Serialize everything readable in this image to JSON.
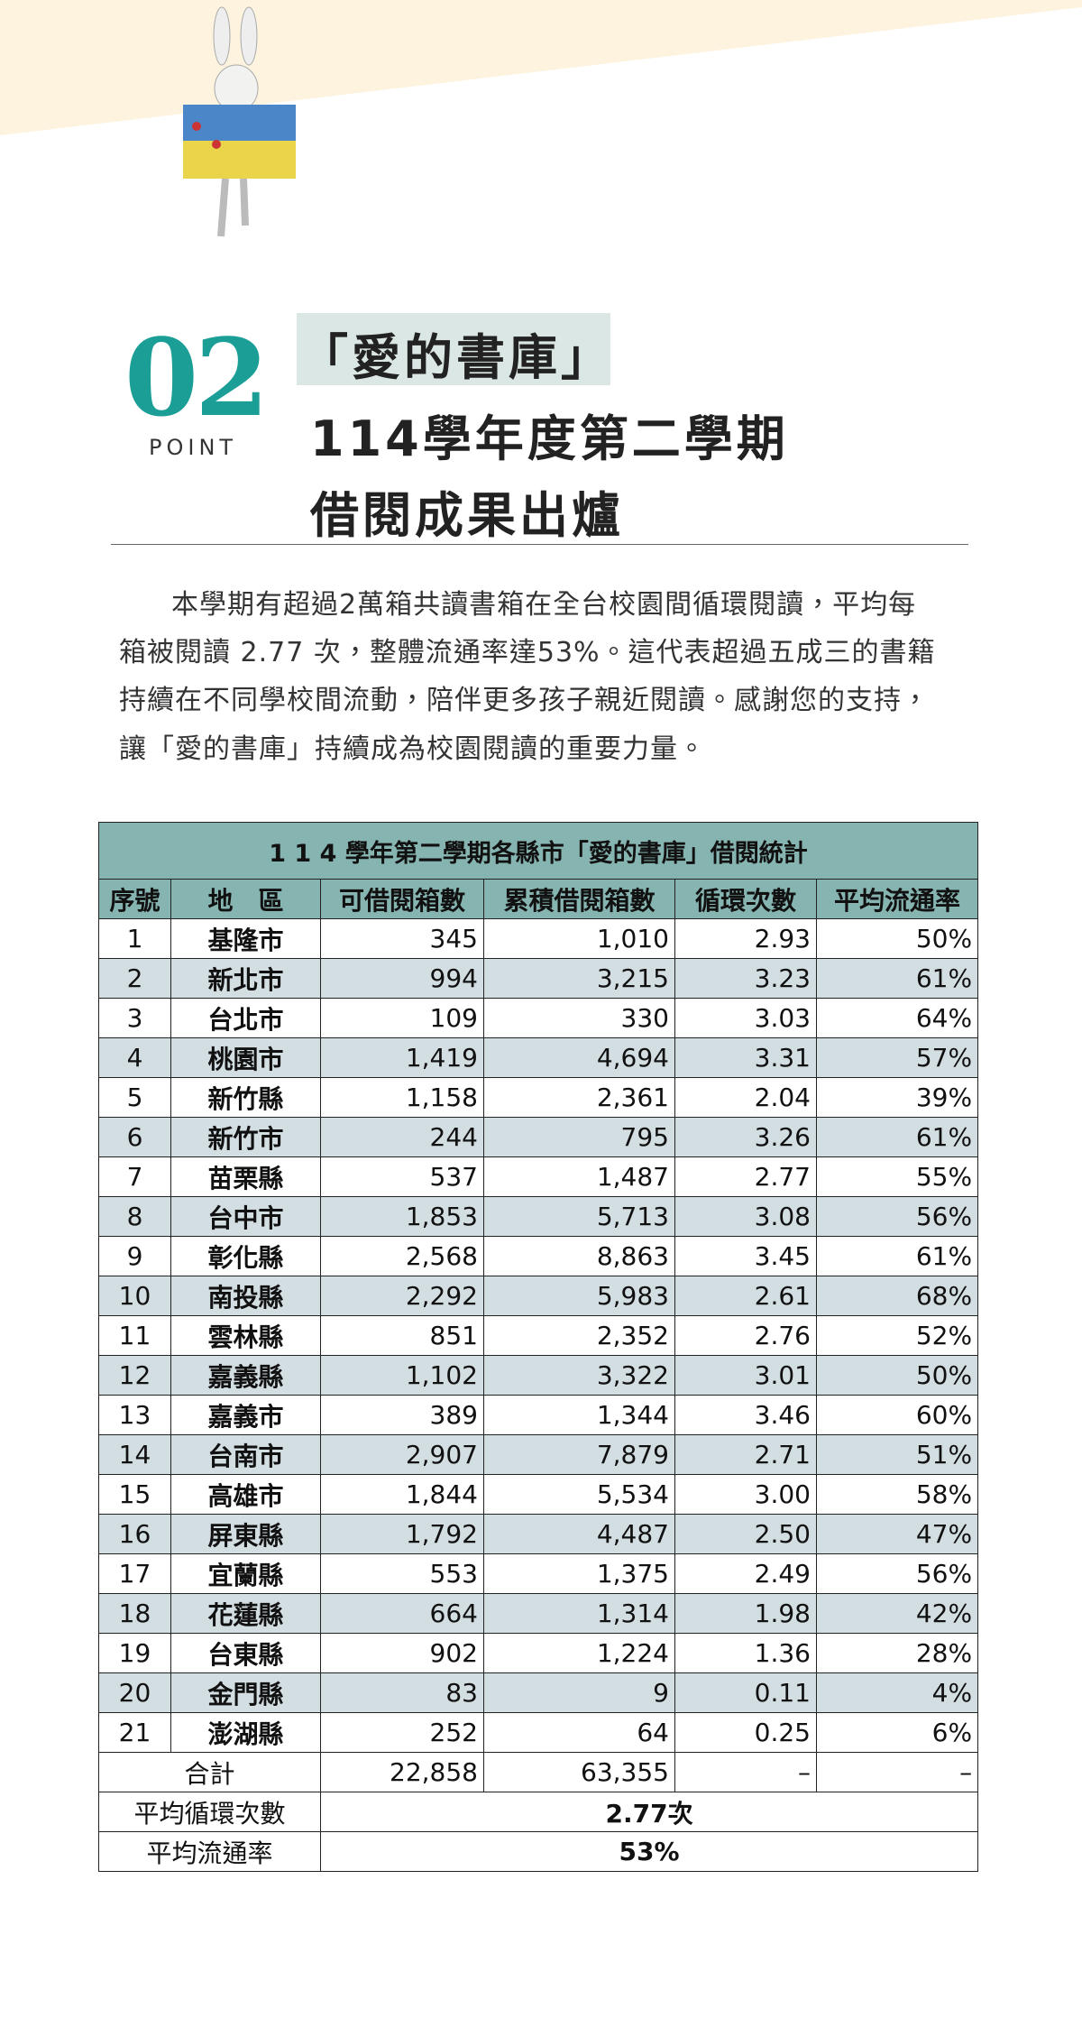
{
  "header": {
    "number": "02",
    "point": "POINT",
    "highlight": "「愛的書庫」",
    "title_lines": [
      "114學年度第二學期",
      "借閱成果出爐"
    ]
  },
  "paragraph": {
    "lines": [
      "本學期有超過2萬箱共讀書箱在全台校園間循環閱讀，平均每",
      "箱被閱讀 2.77 次，整體流通率達53%。這代表超過五成三的書籍",
      "持續在不同學校間流動，陪伴更多孩子親近閱讀。感謝您的支持，",
      "讓「愛的書庫」持續成為校園閱讀的重要力量。"
    ]
  },
  "table": {
    "title": "1 1 4 學年第二學期各縣市「愛的書庫」借閱統計",
    "columns": [
      "序號",
      "地　區",
      "可借閱箱數",
      "累積借閱箱數",
      "循環次數",
      "平均流通率"
    ],
    "rows": [
      [
        "1",
        "基隆市",
        "345",
        "1,010",
        "2.93",
        "50%"
      ],
      [
        "2",
        "新北市",
        "994",
        "3,215",
        "3.23",
        "61%"
      ],
      [
        "3",
        "台北市",
        "109",
        "330",
        "3.03",
        "64%"
      ],
      [
        "4",
        "桃園市",
        "1,419",
        "4,694",
        "3.31",
        "57%"
      ],
      [
        "5",
        "新竹縣",
        "1,158",
        "2,361",
        "2.04",
        "39%"
      ],
      [
        "6",
        "新竹市",
        "244",
        "795",
        "3.26",
        "61%"
      ],
      [
        "7",
        "苗栗縣",
        "537",
        "1,487",
        "2.77",
        "55%"
      ],
      [
        "8",
        "台中市",
        "1,853",
        "5,713",
        "3.08",
        "56%"
      ],
      [
        "9",
        "彰化縣",
        "2,568",
        "8,863",
        "3.45",
        "61%"
      ],
      [
        "10",
        "南投縣",
        "2,292",
        "5,983",
        "2.61",
        "68%"
      ],
      [
        "11",
        "雲林縣",
        "851",
        "2,352",
        "2.76",
        "52%"
      ],
      [
        "12",
        "嘉義縣",
        "1,102",
        "3,322",
        "3.01",
        "50%"
      ],
      [
        "13",
        "嘉義市",
        "389",
        "1,344",
        "3.46",
        "60%"
      ],
      [
        "14",
        "台南市",
        "2,907",
        "7,879",
        "2.71",
        "51%"
      ],
      [
        "15",
        "高雄市",
        "1,844",
        "5,534",
        "3.00",
        "58%"
      ],
      [
        "16",
        "屏東縣",
        "1,792",
        "4,487",
        "2.50",
        "47%"
      ],
      [
        "17",
        "宜蘭縣",
        "553",
        "1,375",
        "2.49",
        "56%"
      ],
      [
        "18",
        "花蓮縣",
        "664",
        "1,314",
        "1.98",
        "42%"
      ],
      [
        "19",
        "台東縣",
        "902",
        "1,224",
        "1.36",
        "28%"
      ],
      [
        "20",
        "金門縣",
        "83",
        "9",
        "0.11",
        "4%"
      ],
      [
        "21",
        "澎湖縣",
        "252",
        "64",
        "0.25",
        "6%"
      ]
    ],
    "total": [
      "合計",
      "22,858",
      "63,355",
      "–",
      "–"
    ],
    "summary": [
      [
        "平均循環次數",
        "2.77次"
      ],
      [
        "平均流通率",
        "53%"
      ]
    ]
  }
}
